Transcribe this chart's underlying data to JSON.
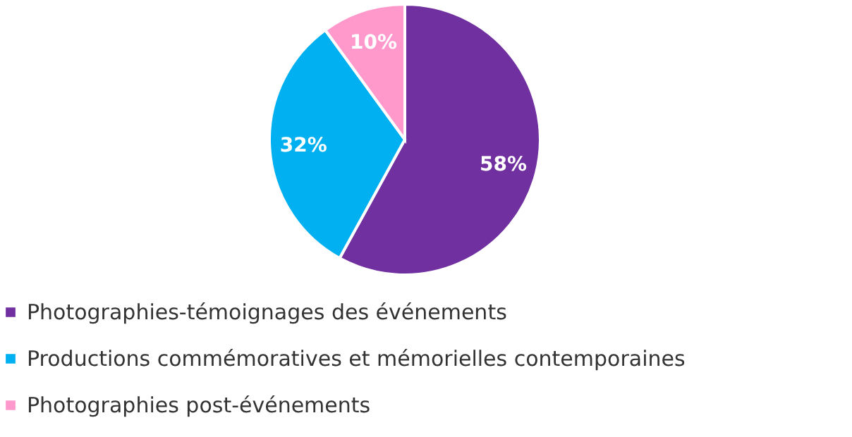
{
  "chart_data": {
    "type": "pie",
    "categories": [
      "Photographies-témoignages des événements",
      "Productions commémoratives et mémorielles contemporaines",
      "Photographies post-événements"
    ],
    "values": [
      58,
      32,
      10
    ],
    "colors": [
      "#7030a0",
      "#00b0f0",
      "#ff99cc"
    ],
    "value_labels": [
      "58%",
      "32%",
      "10%"
    ],
    "legend": "bottom"
  }
}
